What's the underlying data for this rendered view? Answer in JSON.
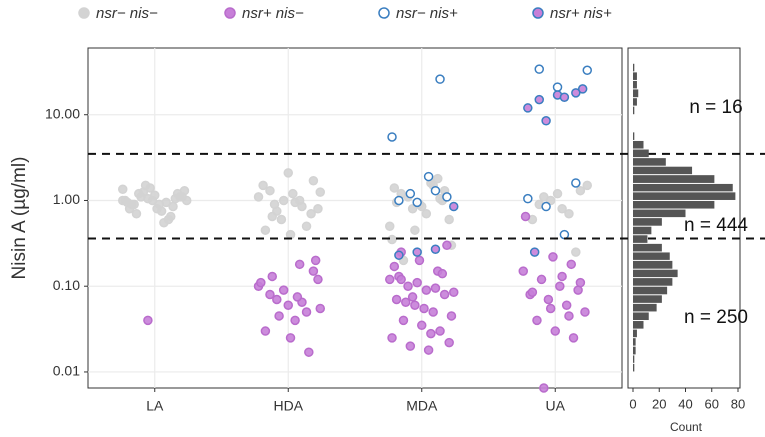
{
  "chart_data": [
    {
      "type": "scatter",
      "ylabel": "Nisin A (µg/ml)",
      "categories": [
        "LA",
        "HDA",
        "MDA",
        "UA"
      ],
      "log_y": true,
      "ylim": [
        0.0065,
        60
      ],
      "yticks": [
        0.01,
        {
          "value": 0.1,
          "label": "0.10"
        },
        {
          "value": 1,
          "label": "1.00"
        },
        {
          "value": 10,
          "label": "10.00"
        }
      ],
      "grid": true,
      "legend": "top",
      "thresholds": [
        3.5,
        0.36
      ],
      "annotations": [
        "n = 16",
        "n = 444",
        "n = 250"
      ],
      "series": [
        {
          "name": "nsr−  nis−",
          "color": "#d3d3d3",
          "edge": "#d3d3d3",
          "x": [
            "LA",
            "LA",
            "LA",
            "LA",
            "LA",
            "LA",
            "LA",
            "LA",
            "LA",
            "LA",
            "LA",
            "LA",
            "LA",
            "LA",
            "LA",
            "LA",
            "LA",
            "LA",
            "LA",
            "LA",
            "LA",
            "LA",
            "LA",
            "LA",
            "LA",
            "LA",
            "LA",
            "LA",
            "LA",
            "LA",
            "HDA",
            "HDA",
            "HDA",
            "HDA",
            "HDA",
            "HDA",
            "HDA",
            "HDA",
            "HDA",
            "HDA",
            "HDA",
            "HDA",
            "HDA",
            "HDA",
            "HDA",
            "HDA",
            "HDA",
            "HDA",
            "HDA",
            "HDA",
            "MDA",
            "MDA",
            "MDA",
            "MDA",
            "MDA",
            "MDA",
            "MDA",
            "MDA",
            "MDA",
            "MDA",
            "MDA",
            "MDA",
            "MDA",
            "MDA",
            "MDA",
            "MDA",
            "MDA",
            "MDA",
            "MDA",
            "MDA",
            "UA",
            "UA",
            "UA",
            "UA",
            "UA",
            "UA",
            "UA",
            "UA",
            "UA",
            "UA"
          ],
          "values": [
            1.0,
            1.1,
            0.9,
            1.2,
            0.8,
            1.05,
            0.95,
            1.3,
            0.7,
            1.15,
            0.85,
            1.0,
            1.25,
            0.75,
            1.1,
            0.9,
            1.4,
            0.6,
            1.0,
            1.2,
            0.8,
            1.05,
            0.95,
            1.5,
            0.55,
            1.1,
            0.9,
            1.0,
            0.65,
            1.35,
            0.9,
            1.2,
            0.7,
            1.5,
            0.6,
            1.0,
            0.8,
            1.3,
            2.1,
            0.5,
            1.1,
            0.75,
            0.95,
            1.7,
            0.45,
            1.0,
            0.85,
            1.25,
            0.65,
            0.4,
            1.0,
            1.4,
            0.8,
            1.6,
            0.6,
            1.2,
            0.9,
            1.8,
            0.5,
            1.1,
            0.7,
            1.3,
            0.95,
            0.45,
            1.5,
            0.3,
            0.2,
            0.85,
            1.05,
            0.35,
            1.1,
            0.8,
            1.3,
            0.6,
            1.0,
            0.7,
            1.5,
            0.9,
            1.2,
            0.25
          ]
        },
        {
          "name": "nsr+  nis−",
          "color": "#c77fd8",
          "edge": "#b96ccc",
          "x": [
            "LA",
            "HDA",
            "HDA",
            "HDA",
            "HDA",
            "HDA",
            "HDA",
            "HDA",
            "HDA",
            "HDA",
            "HDA",
            "HDA",
            "HDA",
            "HDA",
            "HDA",
            "HDA",
            "HDA",
            "HDA",
            "HDA",
            "HDA",
            "HDA",
            "MDA",
            "MDA",
            "MDA",
            "MDA",
            "MDA",
            "MDA",
            "MDA",
            "MDA",
            "MDA",
            "MDA",
            "MDA",
            "MDA",
            "MDA",
            "MDA",
            "MDA",
            "MDA",
            "MDA",
            "MDA",
            "MDA",
            "MDA",
            "MDA",
            "MDA",
            "MDA",
            "MDA",
            "MDA",
            "MDA",
            "MDA",
            "MDA",
            "MDA",
            "MDA",
            "UA",
            "UA",
            "UA",
            "UA",
            "UA",
            "UA",
            "UA",
            "UA",
            "UA",
            "UA",
            "UA",
            "UA",
            "UA",
            "UA",
            "UA",
            "UA",
            "UA",
            "UA",
            "UA",
            "UA"
          ],
          "values": [
            0.04,
            0.18,
            0.12,
            0.08,
            0.06,
            0.05,
            0.1,
            0.07,
            0.04,
            0.15,
            0.03,
            0.09,
            0.065,
            0.055,
            0.13,
            0.025,
            0.017,
            0.11,
            0.045,
            0.075,
            0.2,
            0.25,
            0.2,
            0.15,
            0.12,
            0.1,
            0.09,
            0.08,
            0.07,
            0.06,
            0.05,
            0.045,
            0.04,
            0.035,
            0.03,
            0.025,
            0.02,
            0.018,
            0.3,
            0.13,
            0.11,
            0.095,
            0.085,
            0.065,
            0.055,
            0.14,
            0.17,
            0.075,
            0.028,
            0.022,
            0.12,
            0.22,
            0.18,
            0.15,
            0.12,
            0.1,
            0.09,
            0.08,
            0.07,
            0.06,
            0.05,
            0.04,
            0.03,
            0.025,
            0.65,
            0.0065,
            0.13,
            0.11,
            0.085,
            0.055,
            0.045
          ]
        },
        {
          "name": "nsr−  nis+",
          "color": "#ffffff",
          "edge": "#3a7ec0",
          "x": [
            "MDA",
            "MDA",
            "MDA",
            "MDA",
            "MDA",
            "MDA",
            "MDA",
            "MDA",
            "UA",
            "UA",
            "UA",
            "UA",
            "UA",
            "UA",
            "UA"
          ],
          "values": [
            26,
            5.5,
            1.2,
            1.9,
            1.1,
            1.0,
            0.95,
            1.3,
            33,
            34,
            21,
            1.6,
            1.05,
            0.85,
            0.4
          ]
        },
        {
          "name": "nsr+  nis+",
          "color": "#c77fd8",
          "edge": "#3a7ec0",
          "x": [
            "MDA",
            "MDA",
            "MDA",
            "MDA",
            "UA",
            "UA",
            "UA",
            "UA",
            "UA",
            "UA",
            "UA",
            "UA"
          ],
          "values": [
            0.23,
            0.25,
            0.27,
            0.85,
            15,
            17,
            18,
            12,
            8.5,
            16,
            20,
            0.25
          ]
        }
      ]
    },
    {
      "type": "histogram",
      "orientation": "horizontal",
      "xlabel": "Count",
      "color": "#555555",
      "xlim": [
        0,
        80
      ],
      "xticks": [
        0,
        20,
        40,
        60,
        80
      ],
      "ylim": [
        0.0065,
        60
      ],
      "bins": [
        0.01,
        0.0126,
        0.0158,
        0.02,
        0.0251,
        0.0316,
        0.0398,
        0.0501,
        0.0631,
        0.0794,
        0.1,
        0.126,
        0.158,
        0.2,
        0.251,
        0.316,
        0.398,
        0.501,
        0.631,
        0.794,
        1,
        1.26,
        1.58,
        2,
        2.51,
        3.16,
        3.98,
        5.01,
        6.31,
        7.94,
        10,
        12.6,
        15.8,
        20,
        25.1,
        31.6,
        39.8
      ],
      "counts": [
        1,
        1,
        2,
        2,
        3,
        8,
        12,
        18,
        22,
        26,
        30,
        34,
        30,
        28,
        22,
        11,
        14,
        22,
        40,
        62,
        78,
        76,
        62,
        45,
        25,
        12,
        8,
        1,
        0,
        0,
        1,
        3,
        4,
        3,
        3,
        1
      ]
    }
  ]
}
